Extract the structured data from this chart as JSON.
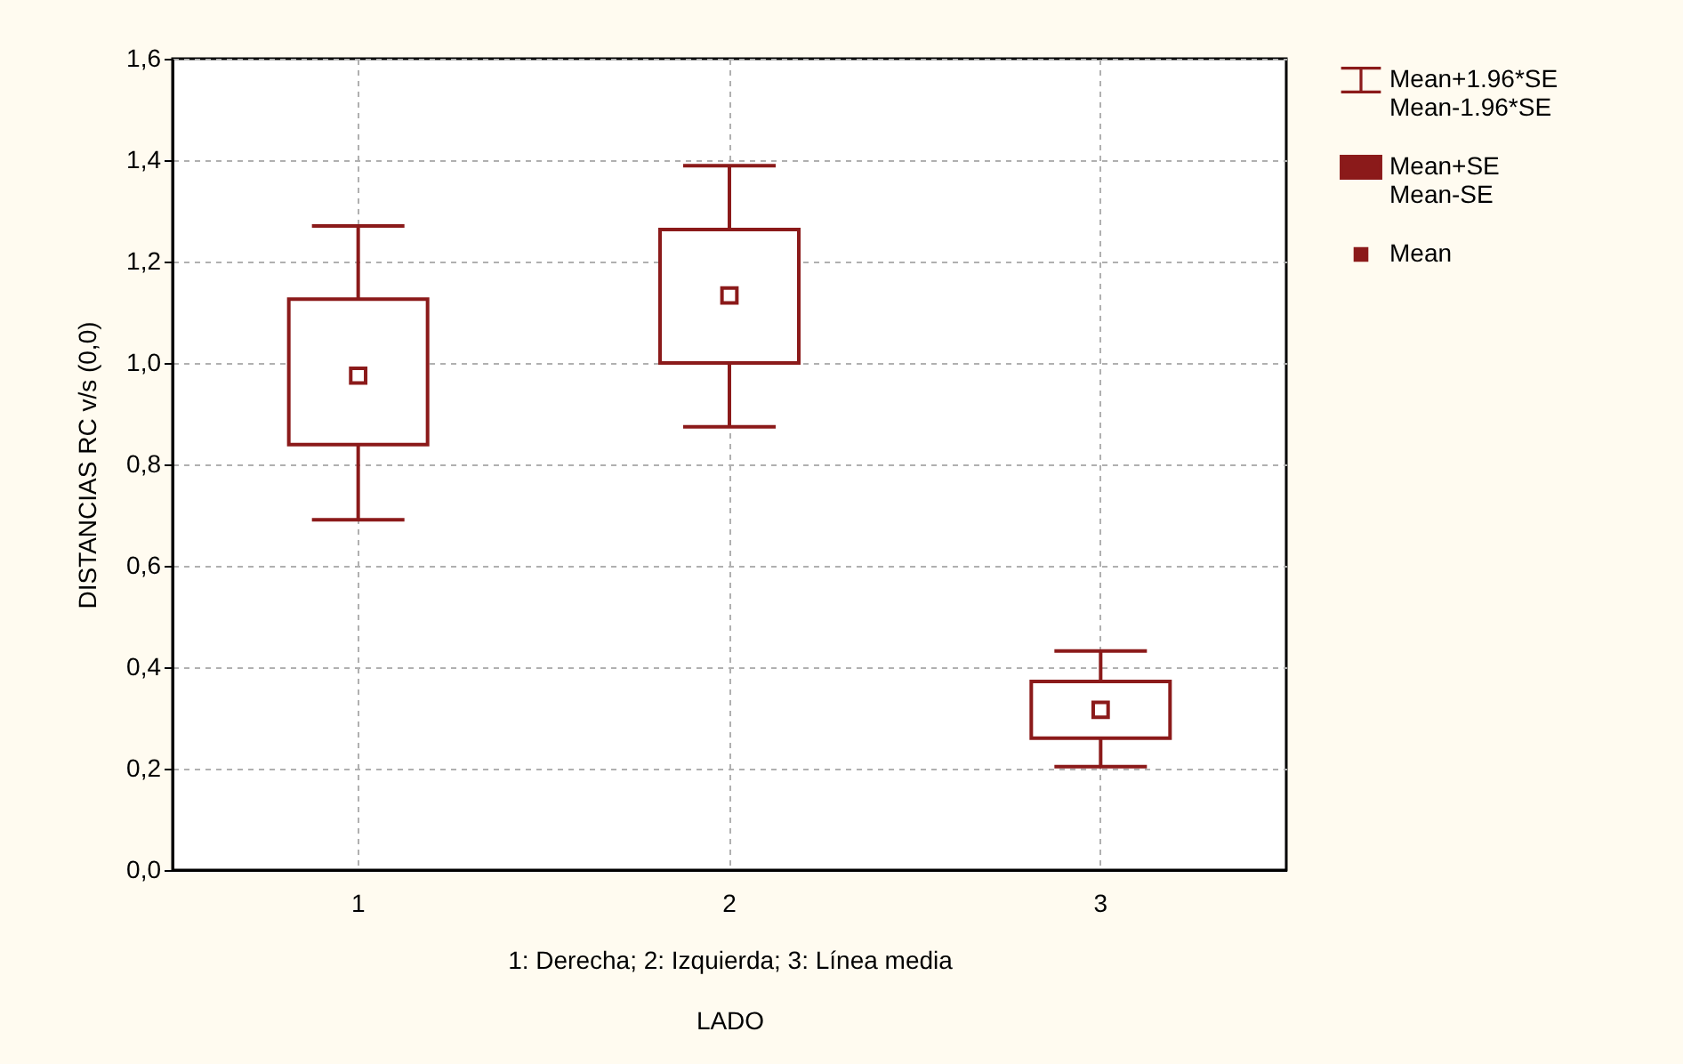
{
  "chart_data": {
    "type": "box",
    "categories": [
      "1",
      "2",
      "3"
    ],
    "boxes": [
      {
        "low": 0.691,
        "q1": 0.839,
        "median": 0.975,
        "q3": 1.126,
        "high": 1.27
      },
      {
        "low": 0.874,
        "q1": 1.0,
        "median": 1.133,
        "q3": 1.263,
        "high": 1.389
      },
      {
        "low": 0.204,
        "q1": 0.26,
        "median": 0.316,
        "q3": 0.372,
        "high": 0.432
      }
    ],
    "color": "#8b1a1a",
    "ylabel": "DISTANCIAS RC v/s (0,0)",
    "xlabel": "LADO",
    "ylim": [
      0,
      1.6
    ],
    "yticks": [
      {
        "value": 0,
        "label": "0,0"
      },
      {
        "value": 0.2,
        "label": "0,2"
      },
      {
        "value": 0.4,
        "label": "0,4"
      },
      {
        "value": 0.6,
        "label": "0,6"
      },
      {
        "value": 0.8,
        "label": "0,8"
      },
      {
        "value": 1.0,
        "label": "1,0"
      },
      {
        "value": 1.2,
        "label": "1,2"
      },
      {
        "value": 1.4,
        "label": "1,4"
      },
      {
        "value": 1.6,
        "label": "1,6"
      }
    ],
    "grid": true,
    "marker": "square",
    "annotations": [
      "1: Derecha; 2: Izquierda; 3: Línea media",
      "Mean+1.96*SE\nMean-1.96*SE",
      "Mean+SE\nMean-SE",
      "Mean"
    ]
  }
}
